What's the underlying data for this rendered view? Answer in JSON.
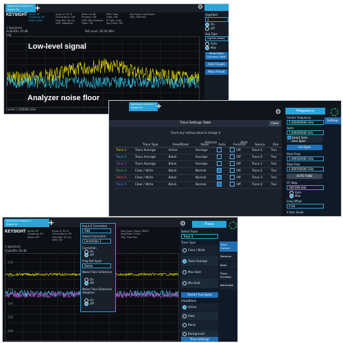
{
  "screen1": {
    "tab_label": "Spectrum Analyzer 1\nSwept SA",
    "logo": "KEYSIGHT",
    "status_cols": [
      "Input: RF\nCoupling: DC\nAlign: Auto",
      "Input Z: 50 Ω\nCorrections: Off\nFreq Ref: Int (S)\nNFE: Adaptive",
      "Atten: 6 dB\nPreamp: Off\nLNP: Not Enabled\nGate: Off",
      "PNO: Fast\nGate: Off\nIF Gain: Low\nSig Track: Off",
      "Avg Type: Log-Power\nTrig: Free Run"
    ],
    "mode_setup": "Mode Setup",
    "trace_label": "1 Spectrum",
    "scale": "Scale/Div 10 dB",
    "log": "Log",
    "ref_level": "Ref Level -30.00 dBm",
    "center": "Center 1.000000 GHz",
    "video_bw": "Video BW 100",
    "annotation_low": "Low-level signal",
    "annotation_floor": "Analyzer noise floor",
    "side": {
      "avg_hold_label": "Avg/Hold Number",
      "avg_hold_value": "1",
      "avg_hold_opts": [
        "On",
        "Off"
      ],
      "avg_type_label": "Avg Type",
      "avg_type_value": "Log-Pwr (Video)",
      "auto": "Auto",
      "man": "Man",
      "meas_setup_summary": "Meas Setup Summary Table",
      "auto_couple": "Auto Couple",
      "meas_preset": "Meas Preset"
    }
  },
  "screen2": {
    "tab_label": "Spectrum Analyzer 1\nSwept SA",
    "dialog_title": "Trace Settings Table",
    "close": "Close",
    "hint": "Touch any setting value to change it",
    "group_detector": "Detector",
    "group_math": "Math",
    "columns": [
      "Trace Type",
      "View/Blank",
      "Value",
      "Auto",
      "Function",
      "Source",
      "Des"
    ],
    "rows": [
      {
        "name": "Trace 1",
        "color": "#f2e600",
        "type": "Trace Average",
        "view": "Active",
        "value": "Average",
        "auto": false,
        "function": "Off",
        "source": "Trace 5",
        "dest": "Trac"
      },
      {
        "name": "Trace 2",
        "color": "#36c6e8",
        "type": "Trace Average",
        "view": "Blank",
        "value": "Average",
        "auto": false,
        "function": "Off",
        "source": "Trace 6",
        "dest": "Trac"
      },
      {
        "name": "Trace 3",
        "color": "#d04ae0",
        "type": "Trace Average",
        "view": "Blank",
        "value": "Average",
        "auto": false,
        "function": "Off",
        "source": "Trace 1",
        "dest": "Trac"
      },
      {
        "name": "Trace 4",
        "color": "#3fd44a",
        "type": "Clear / Write",
        "view": "Blank",
        "value": "Normal",
        "auto": true,
        "function": "Off",
        "source": "Trace 2",
        "dest": "Trac"
      },
      {
        "name": "Trace 5",
        "color": "#ff5a5a",
        "type": "Clear / Write",
        "view": "Blank",
        "value": "Normal",
        "auto": true,
        "function": "Off",
        "source": "Trace 3",
        "dest": "Trac"
      },
      {
        "name": "Trace 6",
        "color": "#5a7bff",
        "type": "Clear / Write",
        "view": "Blank",
        "value": "Normal",
        "auto": true,
        "function": "Off",
        "source": "Trace 4",
        "dest": "Trac"
      }
    ],
    "menu_title": "Frequency",
    "settings_tab": "Settings",
    "center_freq_label": "Center Frequency",
    "center_freq_value": "2.000000000 GHz",
    "span_label": "Span",
    "span_value": "1.000000000 kHz",
    "swept_span": "Swept Span",
    "zero_span": "Zero Span",
    "full_span": "Full Span",
    "start_freq_label": "Start Freq",
    "start_freq_value": "1.999500000 GHz",
    "stop_freq_label": "Stop Freq",
    "stop_freq_value": "2.000500000 GHz",
    "auto_tune": "AUTO TUNE",
    "cf_step_label": "CF Step",
    "cf_step_value": "100.000 kHz",
    "auto": "Auto",
    "man": "Man",
    "freq_offset_label": "Freq Offset",
    "freq_offset_value": "0 Hz",
    "x_axis_scale": "X Axis Scale"
  },
  "screen3": {
    "tab_label": "Spectrum Analyzer 1\nSwept SA",
    "logo": "KEYSIGHT",
    "status_col1": "Input: RF\nCoupling: AC\nAlign: Off",
    "status_col2": "Input Z: 50 Ω\nCorrections: Off\nFreq Ref: Int (S)\nNFE: Off",
    "status_col3": "Avg Type: Power (RMS)\nAvg|Hold: 2/100\nTrig: Free Run",
    "trace_label": "1 Spectrum",
    "scale": "Scale/Div 10 dB",
    "menu_title": "Trace",
    "select_trace_label": "Select Trace",
    "select_trace_value": "Trace 3",
    "trace_type_label": "Trace Type",
    "trace_type_opts": [
      "Clear / Write",
      "Trace Average",
      "Max Hold",
      "Min Hold"
    ],
    "restart_averaging": "Restart Averaging",
    "view_blank_label": "View/Blank",
    "view_blank_opts": [
      "Active",
      "View",
      "Blank",
      "Background"
    ],
    "trace_settings": "Trace Settings",
    "right_tabs": [
      "Trace Control",
      "Detector",
      "Math",
      "Trace Function",
      "Normalize"
    ],
    "dropdown": {
      "input_z_label": "Input Z Correction",
      "input_z_value": "50Ω",
      "select_corr_label": "Select Correction",
      "select_corr_value": "Correction 1",
      "correction_label": "Correction",
      "correction_opts": [
        "On",
        "Off"
      ],
      "freq_ref_label": "Freq Ref Input",
      "freq_ref_value": "Sense",
      "nf_ext_label": "Noise Floor Extension",
      "nf_ext_opts": [
        "On",
        "Off"
      ],
      "nf_adapt_label": "Noise Floor Extension Adaptive",
      "nf_adapt_opts": [
        "On",
        "Off"
      ]
    },
    "yticks": [
      "-110",
      "-120",
      "-130",
      "-140",
      "-150",
      "-160"
    ]
  },
  "colors": {
    "accent": "#2aa5d8",
    "trace_yellow": "#f2e600",
    "trace_cyan": "#36c6e8",
    "trace_magenta": "#d04ae0"
  }
}
